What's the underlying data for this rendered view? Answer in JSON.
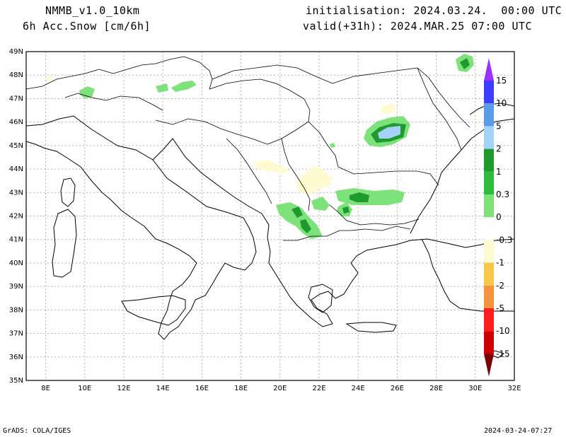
{
  "header": {
    "model": "NMMB_v1.0_10km",
    "field": "6h Acc.Snow [cm/6h]",
    "init": "initialisation: 2024.03.24.  00:00 UTC",
    "valid": "valid(+31h): 2024.MAR.25 07:00 UTC"
  },
  "footer": {
    "left": "GrADS: COLA/IGES",
    "right": "2024-03-24-07:27"
  },
  "map": {
    "lat_labels": [
      "49N",
      "48N",
      "47N",
      "46N",
      "45N",
      "44N",
      "43N",
      "42N",
      "41N",
      "40N",
      "39N",
      "38N",
      "37N",
      "36N",
      "35N"
    ],
    "lon_labels": [
      "8E",
      "10E",
      "12E",
      "14E",
      "16E",
      "18E",
      "20E",
      "22E",
      "24E",
      "26E",
      "28E",
      "30E",
      "32E"
    ],
    "extent": {
      "lon": [
        7,
        32
      ],
      "lat": [
        35,
        49
      ]
    },
    "grid": true
  },
  "colorbar": {
    "labels": [
      "15",
      "10",
      "5",
      "2",
      "1",
      "0.3",
      "0",
      "-0.3",
      "-1",
      "-2",
      "-5",
      "-10",
      "-15"
    ],
    "colors": [
      "#9b30ff",
      "#3c3cff",
      "#5a9bea",
      "#a5d3f8",
      "#1f9a2f",
      "#2fbb3c",
      "#7ee27a",
      "#ffffff",
      "#fffbd0",
      "#f7c84a",
      "#f5923d",
      "#ff1c1c",
      "#cc0000",
      "#7a0000"
    ]
  }
}
